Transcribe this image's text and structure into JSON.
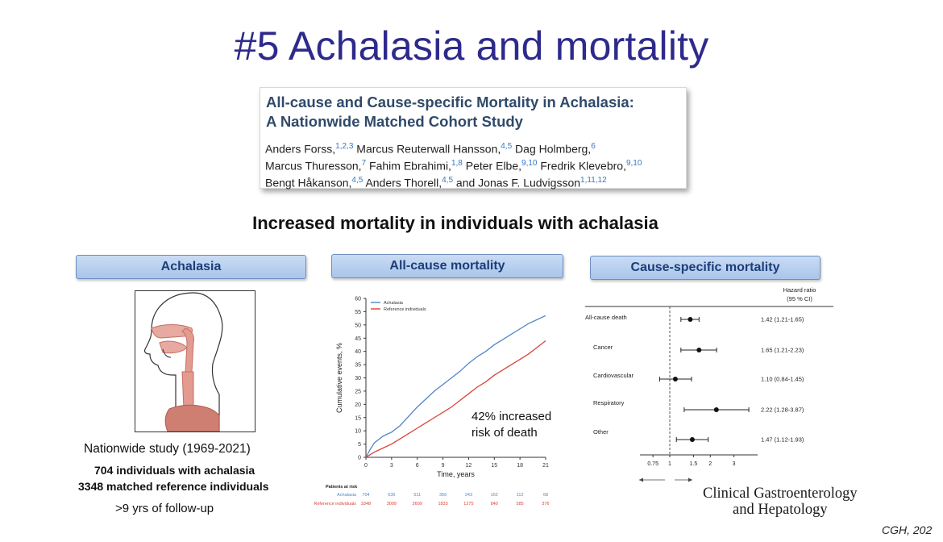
{
  "slide": {
    "title": "#5 Achalasia and mortality",
    "subtitle": "Increased mortality in individuals with achalasia",
    "citation": "CGH, 202"
  },
  "paper": {
    "title_line1": "All-cause and Cause-specific Mortality in Achalasia:",
    "title_line2": "A Nationwide Matched Cohort Study",
    "authors": [
      {
        "name": "Anders Forss,",
        "sup": "1,2,3"
      },
      {
        "name": "Marcus Reuterwall Hansson,",
        "sup": "4,5"
      },
      {
        "name": "Dag Holmberg,",
        "sup": "6"
      },
      {
        "name": "Marcus Thuresson,",
        "sup": "7"
      },
      {
        "name": "Fahim Ebrahimi,",
        "sup": "1,8"
      },
      {
        "name": "Peter Elbe,",
        "sup": "9,10"
      },
      {
        "name": "Fredrik Klevebro,",
        "sup": "9,10"
      },
      {
        "name": "Bengt Håkanson,",
        "sup": "4,5"
      },
      {
        "name": "Anders Thorell,",
        "sup": "4,5"
      },
      {
        "name": "and Jonas F. Ludvigsson",
        "sup": "1,11,12"
      }
    ]
  },
  "left_panel": {
    "header": "Achalasia",
    "study": "Nationwide study (1969-2021)",
    "n_achalasia": "704 individuals with achalasia",
    "n_reference": "3348 matched reference individuals",
    "followup": ">9 yrs of follow-up"
  },
  "middle_panel": {
    "header": "All-cause mortality",
    "callout_line1": "42% increased",
    "callout_line2": "risk of death"
  },
  "right_panel": {
    "header": "Cause-specific mortality"
  },
  "logo": {
    "line1": "Clinical Gastroenterology",
    "line2": "and Hepatology"
  },
  "colors": {
    "title": "#2e2a8c",
    "achalasia_line": "#4f86c6",
    "reference_line": "#d9443b"
  },
  "chart_data": [
    {
      "type": "line",
      "title": "",
      "xlabel": "Time, years",
      "ylabel": "Cumulative events, %",
      "xlim": [
        0,
        21
      ],
      "ylim": [
        0,
        60
      ],
      "x_ticks": [
        0,
        3,
        6,
        9,
        12,
        15,
        18,
        21
      ],
      "y_ticks": [
        0,
        5,
        10,
        15,
        20,
        25,
        30,
        35,
        40,
        45,
        50,
        55,
        60
      ],
      "legend": "top-left",
      "series": [
        {
          "name": "Achalasia",
          "color": "#4f86c6",
          "x": [
            0,
            0.5,
            1,
            2,
            3,
            4,
            5,
            6,
            7,
            8,
            9,
            10,
            11,
            12,
            13,
            14,
            15,
            16,
            17,
            18,
            19,
            20,
            21
          ],
          "y": [
            0,
            3,
            5.5,
            8,
            9.5,
            12,
            15.5,
            19,
            22,
            25,
            27.5,
            30,
            32.5,
            35.5,
            38,
            40,
            42.5,
            44.5,
            46.5,
            48.5,
            50.5,
            52,
            53.5
          ]
        },
        {
          "name": "Reference individuals",
          "color": "#d9443b",
          "x": [
            0,
            0.5,
            1,
            2,
            3,
            4,
            5,
            6,
            7,
            8,
            9,
            10,
            11,
            12,
            13,
            14,
            15,
            16,
            17,
            18,
            19,
            20,
            21
          ],
          "y": [
            0,
            1,
            2,
            3.5,
            5,
            7,
            9,
            11,
            13,
            15,
            17,
            19,
            21.5,
            24,
            26.5,
            28.5,
            31,
            33,
            35,
            37,
            39,
            41.5,
            44
          ]
        }
      ],
      "risk_table": {
        "title": "Patients at risk",
        "rows": [
          {
            "label": "Achalasia",
            "values": [
              "704",
              "636",
              "511",
              "356",
              "243",
              "162",
              "112",
              "68"
            ]
          },
          {
            "label": "Reference individuals",
            "values": [
              "3348",
              "3099",
              "2609",
              "1833",
              "1275",
              "840",
              "585",
              "376"
            ]
          }
        ]
      }
    },
    {
      "type": "scatter",
      "title": "",
      "header": "Hazard ratio",
      "header_ci": "(95 % CI)",
      "x_scale": "log",
      "x_ticks": [
        "0.75",
        "1",
        "1.5",
        "2",
        "3"
      ],
      "categories": [
        "All-cause death",
        "Cancer",
        "Cardiovascular",
        "Respiratory",
        "Other"
      ],
      "hr": [
        1.42,
        1.65,
        1.1,
        2.22,
        1.47
      ],
      "ci_low": [
        1.21,
        1.21,
        0.84,
        1.28,
        1.12
      ],
      "ci_high": [
        1.65,
        2.23,
        1.45,
        3.87,
        1.93
      ],
      "labels": [
        "1.42 (1.21-1.65)",
        "1.65 (1.21-2.23)",
        "1.10 (0.84-1.45)",
        "2.22 (1.28-3.87)",
        "1.47 (1.12-1.93)"
      ]
    }
  ]
}
